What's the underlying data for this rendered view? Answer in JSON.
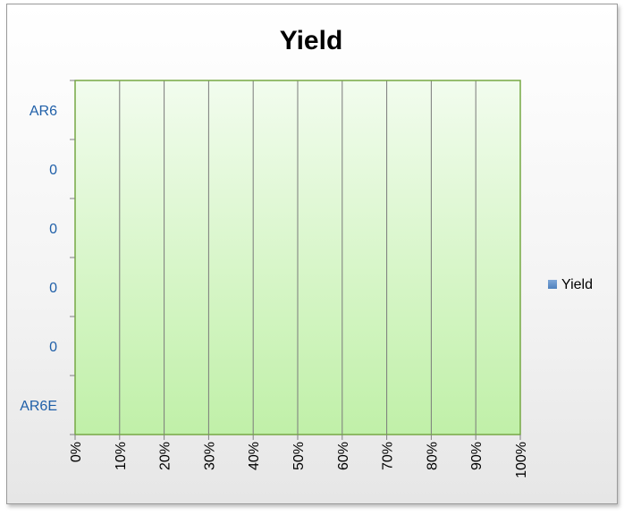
{
  "chart_data": {
    "type": "bar",
    "orientation": "horizontal",
    "stacked": "percent",
    "title": "Yield",
    "categories": [
      "AR6",
      "0",
      "0",
      "0",
      "0",
      "AR6E"
    ],
    "series": [
      {
        "name": "Yield",
        "values": [
          0,
          0,
          0,
          0,
          0,
          0
        ],
        "color": "#4f81bd"
      }
    ],
    "x_ticks": [
      "0%",
      "10%",
      "20%",
      "30%",
      "40%",
      "50%",
      "60%",
      "70%",
      "80%",
      "90%",
      "100%"
    ],
    "xlim": [
      0,
      100
    ],
    "xlabel": "",
    "ylabel": "",
    "grid": "vertical",
    "legend_position": "right",
    "colors": {
      "plot_area_top": "#f2fcee",
      "plot_area_bottom": "#c0f0a8",
      "plot_border": "#76a844",
      "gridline": "#7a7a7a",
      "category_label": "#1f5fa8",
      "series": "#4f81bd"
    }
  }
}
